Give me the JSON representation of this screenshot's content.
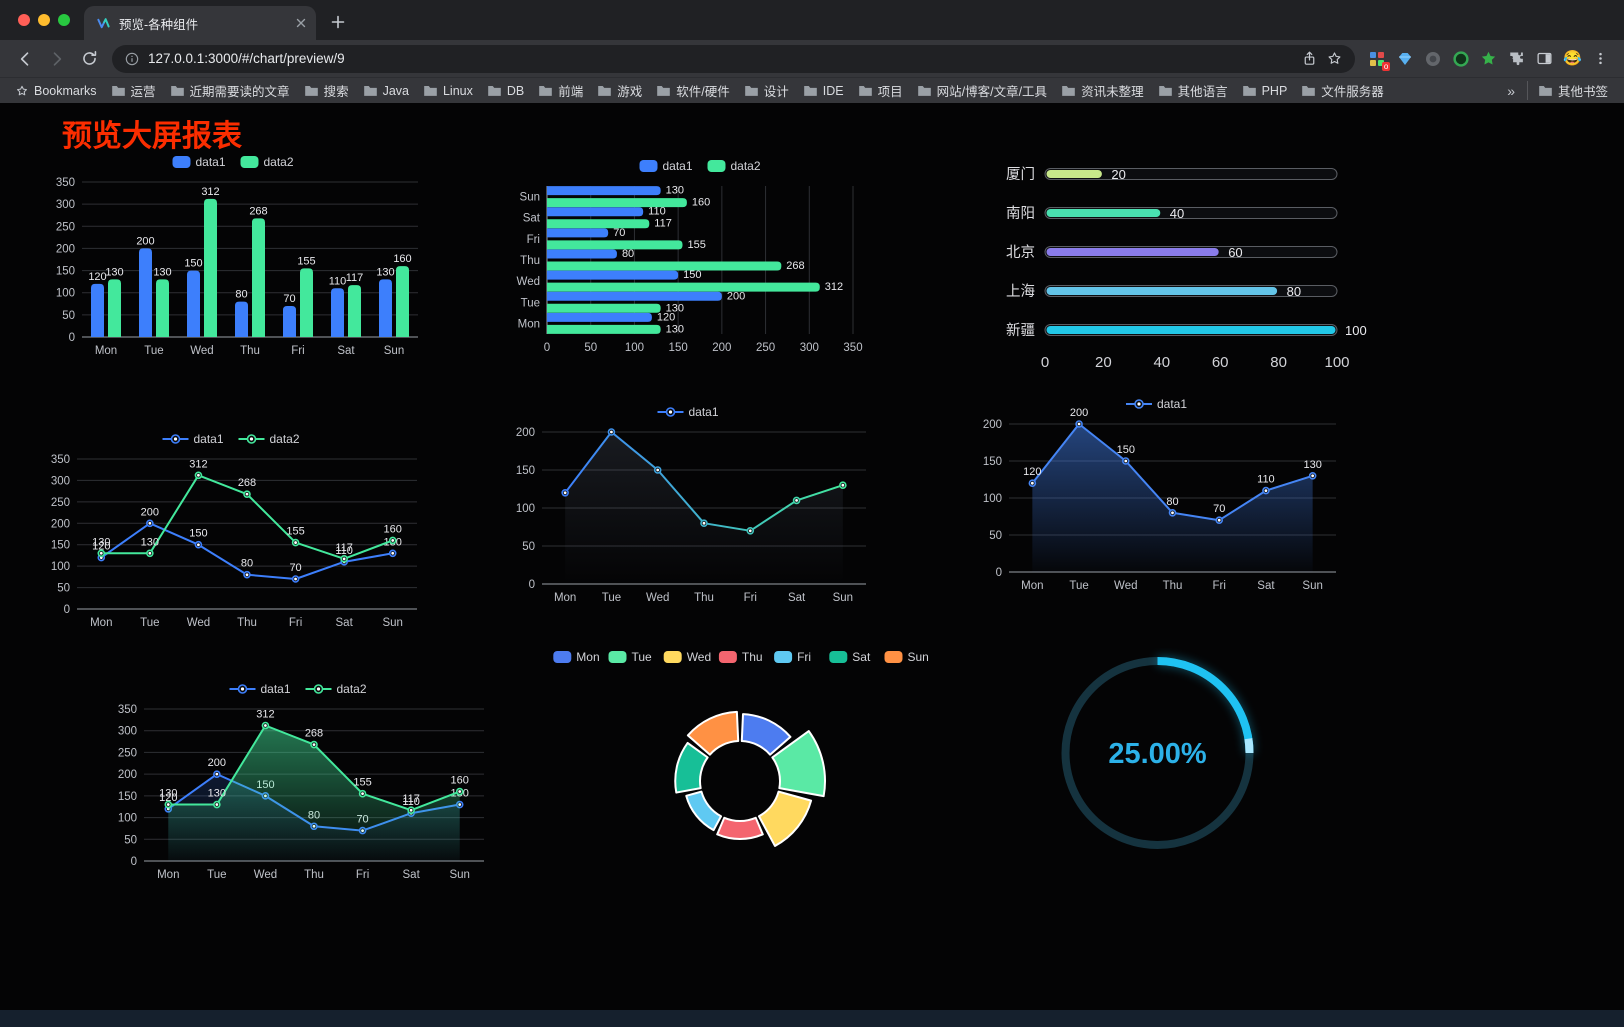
{
  "browser": {
    "tab": {
      "title": "预览-各种组件"
    },
    "url": "127.0.0.1:3000/#/chart/preview/9",
    "extension_badge": "o",
    "bookmarks_bar": {
      "bookmarks_label": "Bookmarks",
      "folders": [
        "运营",
        "近期需要读的文章",
        "搜索",
        "Java",
        "Linux",
        "DB",
        "前端",
        "游戏",
        "软件/硬件",
        "设计",
        "IDE",
        "项目",
        "网站/博客/文章/工具",
        "资讯未整理",
        "其他语言",
        "PHP",
        "文件服务器"
      ],
      "overflow_chevron": "»",
      "other_bookmarks_label": "其他书签"
    }
  },
  "page": {
    "title": "预览大屏报表",
    "title_color": "#fb2d00"
  },
  "chart_data": [
    {
      "id": "bar-grouped",
      "type": "bar",
      "title": "",
      "legend_position": "top",
      "grid": true,
      "categories": [
        "Mon",
        "Tue",
        "Wed",
        "Thu",
        "Fri",
        "Sat",
        "Sun"
      ],
      "series": [
        {
          "name": "data1",
          "color": "#3D7FFC",
          "values": [
            120,
            200,
            150,
            80,
            70,
            110,
            130
          ]
        },
        {
          "name": "data2",
          "color": "#43E89C",
          "values": [
            130,
            130,
            312,
            268,
            155,
            117,
            160
          ]
        }
      ],
      "ylim": [
        0,
        350
      ],
      "yticks": [
        0,
        50,
        100,
        150,
        200,
        250,
        300,
        350
      ]
    },
    {
      "id": "bar-horizontal",
      "type": "hbar",
      "legend_position": "top",
      "grid": true,
      "categories": [
        "Mon",
        "Tue",
        "Wed",
        "Thu",
        "Fri",
        "Sat",
        "Sun"
      ],
      "series": [
        {
          "name": "data1",
          "color": "#3D7FFC",
          "values": [
            120,
            200,
            150,
            80,
            70,
            110,
            130
          ]
        },
        {
          "name": "data2",
          "color": "#43E89C",
          "values": [
            130,
            130,
            312,
            268,
            155,
            117,
            160
          ]
        }
      ],
      "xlim": [
        0,
        350
      ],
      "xticks": [
        0,
        50,
        100,
        150,
        200,
        250,
        300,
        350
      ]
    },
    {
      "id": "progress-bars",
      "type": "progress",
      "rows": [
        {
          "label": "厦门",
          "value": 20,
          "color": "#C8E88A"
        },
        {
          "label": "南阳",
          "value": 40,
          "color": "#49E0B0"
        },
        {
          "label": "北京",
          "value": 60,
          "color": "#8A7CEA"
        },
        {
          "label": "上海",
          "value": 80,
          "color": "#63C4E8"
        },
        {
          "label": "新疆",
          "value": 100,
          "color": "#22C8E8"
        }
      ],
      "xlim": [
        0,
        100
      ],
      "xticks": [
        0,
        20,
        40,
        60,
        80,
        100
      ]
    },
    {
      "id": "line-two-series",
      "type": "line",
      "legend_position": "top",
      "categories": [
        "Mon",
        "Tue",
        "Wed",
        "Thu",
        "Fri",
        "Sat",
        "Sun"
      ],
      "series": [
        {
          "name": "data1",
          "color": "#3D7FFC",
          "show_labels": true,
          "values": [
            120,
            200,
            150,
            80,
            70,
            110,
            130
          ]
        },
        {
          "name": "data2",
          "color": "#43E89C",
          "show_labels": true,
          "values": [
            130,
            130,
            312,
            268,
            155,
            117,
            160
          ]
        }
      ],
      "ylim": [
        0,
        350
      ],
      "yticks": [
        0,
        50,
        100,
        150,
        200,
        250,
        300,
        350
      ]
    },
    {
      "id": "line-gradient",
      "type": "line",
      "legend_position": "top",
      "categories": [
        "Mon",
        "Tue",
        "Wed",
        "Thu",
        "Fri",
        "Sat",
        "Sun"
      ],
      "series": [
        {
          "name": "data1",
          "gradient": [
            "#3D7FFC",
            "#43E89C"
          ],
          "glow": true,
          "show_labels": false,
          "values": [
            120,
            200,
            150,
            80,
            70,
            110,
            130
          ]
        }
      ],
      "ylim": [
        0,
        200
      ],
      "yticks": [
        0,
        50,
        100,
        150,
        200
      ]
    },
    {
      "id": "line-area-blue",
      "type": "line",
      "legend_position": "top",
      "categories": [
        "Mon",
        "Tue",
        "Wed",
        "Thu",
        "Fri",
        "Sat",
        "Sun"
      ],
      "series": [
        {
          "name": "data1",
          "color": "#4585F5",
          "area": true,
          "area_top": 0.5,
          "show_labels": true,
          "values": [
            120,
            200,
            150,
            80,
            70,
            110,
            130
          ]
        }
      ],
      "ylim": [
        0,
        200
      ],
      "yticks": [
        0,
        50,
        100,
        150,
        200
      ]
    },
    {
      "id": "line-area-green",
      "type": "line",
      "legend_position": "top",
      "categories": [
        "Mon",
        "Tue",
        "Wed",
        "Thu",
        "Fri",
        "Sat",
        "Sun"
      ],
      "series": [
        {
          "name": "data1",
          "color": "#3D7FFC",
          "area": true,
          "area_top": 0.18,
          "show_labels": true,
          "values": [
            120,
            200,
            150,
            80,
            70,
            110,
            130
          ]
        },
        {
          "name": "data2",
          "color": "#43E89C",
          "area": true,
          "area_top": 0.5,
          "show_labels": true,
          "values": [
            130,
            130,
            312,
            268,
            155,
            117,
            160
          ]
        }
      ],
      "ylim": [
        0,
        350
      ],
      "yticks": [
        0,
        50,
        100,
        150,
        200,
        250,
        300,
        350
      ]
    },
    {
      "id": "rose-donut",
      "type": "rose",
      "legend_position": "top",
      "slices": [
        {
          "label": "Mon",
          "value": 120,
          "color": "#4D7CF0"
        },
        {
          "label": "Tue",
          "value": 200,
          "color": "#5AE9A5"
        },
        {
          "label": "Wed",
          "value": 150,
          "color": "#FFD95F"
        },
        {
          "label": "Thu",
          "value": 80,
          "color": "#F4656F"
        },
        {
          "label": "Fri",
          "value": 70,
          "color": "#5FC9F2"
        },
        {
          "label": "Sat",
          "value": 110,
          "color": "#17BF97"
        },
        {
          "label": "Sun",
          "value": 130,
          "color": "#FF9144"
        }
      ]
    },
    {
      "id": "gauge-ring",
      "type": "gauge",
      "value": 25,
      "value_label": "25.00%",
      "color": "#1FC2F2",
      "text_color": "#2CB1E8",
      "track_color": "#15333F"
    }
  ]
}
